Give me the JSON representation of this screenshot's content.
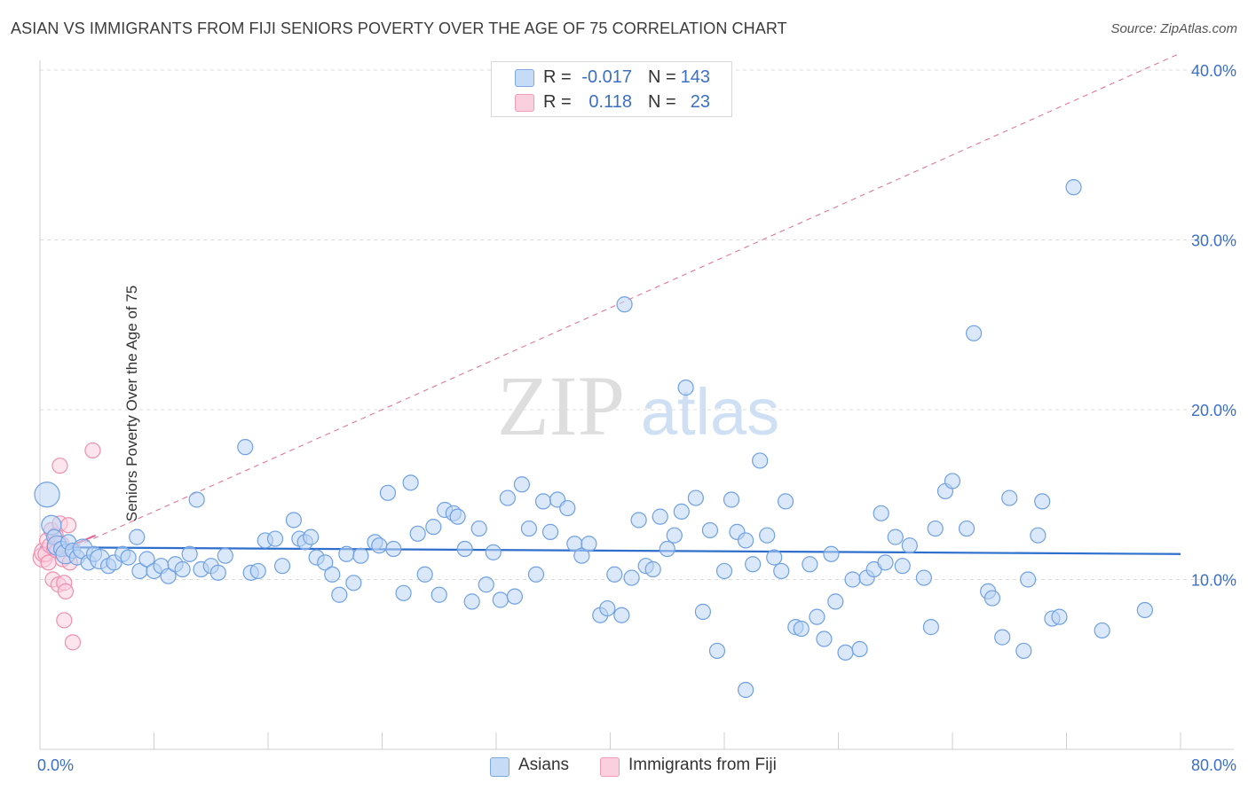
{
  "title": "ASIAN VS IMMIGRANTS FROM FIJI SENIORS POVERTY OVER THE AGE OF 75 CORRELATION CHART",
  "source": "Source: ZipAtlas.com",
  "watermark": {
    "zip": "ZIP",
    "atlas": "atlas"
  },
  "legend": {
    "rows": [
      {
        "r_label": "R =",
        "r_value": "-0.017",
        "n_label": "N =",
        "n_value": "143",
        "color": "#a9c7ef"
      },
      {
        "r_label": "R =",
        "r_value": "0.118",
        "n_label": "N =",
        "n_value": "23",
        "color": "#f6b6ca"
      }
    ]
  },
  "bottom_legend": [
    {
      "label": "Asians",
      "color": "#a9c7ef"
    },
    {
      "label": "Immigrants from Fiji",
      "color": "#f6b6ca"
    }
  ],
  "chart_data": {
    "type": "scatter",
    "title": "ASIAN VS IMMIGRANTS FROM FIJI SENIORS POVERTY OVER THE AGE OF 75 CORRELATION CHART",
    "xlabel": "",
    "ylabel": "Seniors Poverty Over the Age of 75",
    "xlim": [
      0,
      80
    ],
    "ylim": [
      0,
      40
    ],
    "x_tick_labels": [
      "0.0%",
      "80.0%"
    ],
    "y_tick_labels": [
      "10.0%",
      "20.0%",
      "30.0%",
      "40.0%"
    ],
    "y_ticks": [
      10,
      20,
      30,
      40
    ],
    "grid": "horizontal dashed",
    "legend_placement": "top-center",
    "series": [
      {
        "name": "Asians",
        "color": "#6fa1e3",
        "points": [
          [
            0.5,
            15.0,
            3
          ],
          [
            0.8,
            13.2,
            2
          ],
          [
            1,
            12.5,
            1
          ],
          [
            1.2,
            12.0,
            2
          ],
          [
            1.5,
            11.8,
            1
          ],
          [
            1.8,
            11.5,
            2
          ],
          [
            2,
            12.2,
            1
          ],
          [
            2.3,
            11.7,
            1
          ],
          [
            2.6,
            11.3,
            1
          ],
          [
            3,
            11.8,
            2
          ],
          [
            3.4,
            11.0,
            1
          ],
          [
            3.8,
            11.5,
            1
          ],
          [
            4.2,
            11.2,
            2
          ],
          [
            4.8,
            10.8,
            1
          ],
          [
            5.2,
            11.0,
            1
          ],
          [
            5.8,
            11.5,
            1
          ],
          [
            6.2,
            11.3,
            1
          ],
          [
            6.8,
            12.5,
            1
          ],
          [
            7,
            10.5,
            1
          ],
          [
            7.5,
            11.2,
            1
          ],
          [
            8,
            10.5,
            1
          ],
          [
            8.5,
            10.8,
            1
          ],
          [
            9,
            10.2,
            1
          ],
          [
            9.5,
            10.9,
            1
          ],
          [
            10,
            10.6,
            1
          ],
          [
            10.5,
            11.5,
            1
          ],
          [
            11,
            14.7,
            1
          ],
          [
            11.3,
            10.6,
            1
          ],
          [
            12,
            10.8,
            1
          ],
          [
            12.5,
            10.4,
            1
          ],
          [
            13,
            11.4,
            1
          ],
          [
            14.4,
            17.8,
            1
          ],
          [
            14.8,
            10.4,
            1
          ],
          [
            15.3,
            10.5,
            1
          ],
          [
            15.8,
            12.3,
            1
          ],
          [
            16.5,
            12.4,
            1
          ],
          [
            17,
            10.8,
            1
          ],
          [
            17.8,
            13.5,
            1
          ],
          [
            18.2,
            12.4,
            1
          ],
          [
            18.6,
            12.2,
            1
          ],
          [
            19,
            12.5,
            1
          ],
          [
            19.4,
            11.3,
            1
          ],
          [
            20,
            11.0,
            1
          ],
          [
            20.5,
            10.3,
            1
          ],
          [
            21,
            9.1,
            1
          ],
          [
            21.5,
            11.5,
            1
          ],
          [
            22,
            9.8,
            1
          ],
          [
            22.5,
            11.4,
            1
          ],
          [
            23.5,
            12.2,
            1
          ],
          [
            23.8,
            12.0,
            1
          ],
          [
            24.4,
            15.1,
            1
          ],
          [
            24.8,
            11.8,
            1
          ],
          [
            25.5,
            9.2,
            1
          ],
          [
            26,
            15.7,
            1
          ],
          [
            26.5,
            12.7,
            1
          ],
          [
            27,
            10.3,
            1
          ],
          [
            27.6,
            13.1,
            1
          ],
          [
            28,
            9.1,
            1
          ],
          [
            28.4,
            14.1,
            1
          ],
          [
            29,
            13.9,
            1
          ],
          [
            29.3,
            13.7,
            1
          ],
          [
            29.8,
            11.8,
            1
          ],
          [
            30.3,
            8.7,
            1
          ],
          [
            30.8,
            13.0,
            1
          ],
          [
            31.3,
            9.7,
            1
          ],
          [
            31.8,
            11.6,
            1
          ],
          [
            32.3,
            8.8,
            1
          ],
          [
            32.8,
            14.8,
            1
          ],
          [
            33.3,
            9.0,
            1
          ],
          [
            33.8,
            15.6,
            1
          ],
          [
            34.3,
            13.0,
            1
          ],
          [
            34.8,
            10.3,
            1
          ],
          [
            35.3,
            14.6,
            1
          ],
          [
            35.8,
            12.8,
            1
          ],
          [
            36.3,
            14.7,
            1
          ],
          [
            37,
            14.2,
            1
          ],
          [
            37.5,
            12.1,
            1
          ],
          [
            38,
            11.4,
            1
          ],
          [
            38.5,
            12.1,
            1
          ],
          [
            39.3,
            7.9,
            1
          ],
          [
            39.8,
            8.3,
            1
          ],
          [
            40.3,
            10.3,
            1
          ],
          [
            40.8,
            7.9,
            1
          ],
          [
            41,
            26.2,
            1
          ],
          [
            41.5,
            10.1,
            1
          ],
          [
            42,
            13.5,
            1
          ],
          [
            42.5,
            10.8,
            1
          ],
          [
            43,
            10.6,
            1
          ],
          [
            43.5,
            13.7,
            1
          ],
          [
            44,
            11.8,
            1
          ],
          [
            44.5,
            12.6,
            1
          ],
          [
            45,
            14.0,
            1
          ],
          [
            45.3,
            21.3,
            1
          ],
          [
            46,
            14.8,
            1
          ],
          [
            46.5,
            8.1,
            1
          ],
          [
            47,
            12.9,
            1
          ],
          [
            47.5,
            5.8,
            1
          ],
          [
            48,
            10.5,
            1
          ],
          [
            48.5,
            14.7,
            1
          ],
          [
            48.9,
            12.8,
            1
          ],
          [
            49.5,
            12.3,
            1
          ],
          [
            50,
            10.9,
            1
          ],
          [
            50.5,
            17.0,
            1
          ],
          [
            51,
            12.6,
            1
          ],
          [
            51.5,
            11.3,
            1
          ],
          [
            52,
            10.5,
            1
          ],
          [
            52.3,
            14.6,
            1
          ],
          [
            53,
            7.2,
            1
          ],
          [
            53.4,
            7.1,
            1
          ],
          [
            54,
            10.9,
            1
          ],
          [
            54.5,
            7.8,
            1
          ],
          [
            55,
            6.5,
            1
          ],
          [
            55.5,
            11.5,
            1
          ],
          [
            55.8,
            8.7,
            1
          ],
          [
            56.5,
            5.7,
            1
          ],
          [
            57,
            10.0,
            1
          ],
          [
            57.5,
            5.9,
            1
          ],
          [
            58,
            10.1,
            1
          ],
          [
            58.5,
            10.6,
            1
          ],
          [
            59,
            13.9,
            1
          ],
          [
            59.3,
            11.0,
            1
          ],
          [
            60,
            12.5,
            1
          ],
          [
            60.5,
            10.8,
            1
          ],
          [
            61,
            12.0,
            1
          ],
          [
            62,
            10.1,
            1
          ],
          [
            62.5,
            7.2,
            1
          ],
          [
            62.8,
            13.0,
            1
          ],
          [
            63.5,
            15.2,
            1
          ],
          [
            64,
            15.8,
            1
          ],
          [
            65,
            13.0,
            1
          ],
          [
            65.5,
            24.5,
            1
          ],
          [
            66.5,
            9.3,
            1
          ],
          [
            66.8,
            8.9,
            1
          ],
          [
            67.5,
            6.6,
            1
          ],
          [
            68,
            14.8,
            1
          ],
          [
            69,
            5.8,
            1
          ],
          [
            69.3,
            10.0,
            1
          ],
          [
            70,
            12.6,
            1
          ],
          [
            70.3,
            14.6,
            1
          ],
          [
            71,
            7.7,
            1
          ],
          [
            71.5,
            7.8,
            1
          ],
          [
            72.5,
            33.1,
            1
          ],
          [
            74.5,
            7.0,
            1
          ],
          [
            77.5,
            8.2,
            1
          ],
          [
            49.5,
            3.5,
            1
          ]
        ]
      },
      {
        "name": "Immigrants from Fiji",
        "color": "#f08bab",
        "points": [
          [
            0.2,
            11.3,
            2
          ],
          [
            0.3,
            11.6,
            2
          ],
          [
            0.4,
            11.5,
            1
          ],
          [
            0.5,
            12.3,
            1
          ],
          [
            0.6,
            11.0,
            1
          ],
          [
            0.7,
            12.0,
            1
          ],
          [
            0.8,
            12.9,
            1
          ],
          [
            0.9,
            10.0,
            1
          ],
          [
            1,
            11.8,
            1
          ],
          [
            1.1,
            12.6,
            1
          ],
          [
            1.2,
            11.7,
            1
          ],
          [
            1.3,
            9.7,
            1
          ],
          [
            1.4,
            13.3,
            1
          ],
          [
            1.4,
            16.7,
            1
          ],
          [
            1.5,
            12.1,
            1
          ],
          [
            1.6,
            11.2,
            1
          ],
          [
            1.7,
            9.8,
            1
          ],
          [
            1.7,
            7.6,
            1
          ],
          [
            1.8,
            9.3,
            1
          ],
          [
            2,
            13.2,
            1
          ],
          [
            2.1,
            11.0,
            1
          ],
          [
            2.3,
            6.3,
            1
          ],
          [
            3.7,
            17.6,
            1
          ]
        ]
      }
    ],
    "trend_lines": [
      {
        "series": "Asians",
        "x": [
          0,
          80
        ],
        "y": [
          11.9,
          11.5
        ],
        "style": "solid"
      },
      {
        "series": "Immigrants from Fiji",
        "x": [
          0,
          3.9
        ],
        "y": [
          11.2,
          12.6
        ],
        "style": "solid"
      },
      {
        "series": "Immigrants from Fiji",
        "x": [
          0,
          80
        ],
        "y": [
          11.0,
          41.0
        ],
        "style": "dashed"
      }
    ]
  }
}
